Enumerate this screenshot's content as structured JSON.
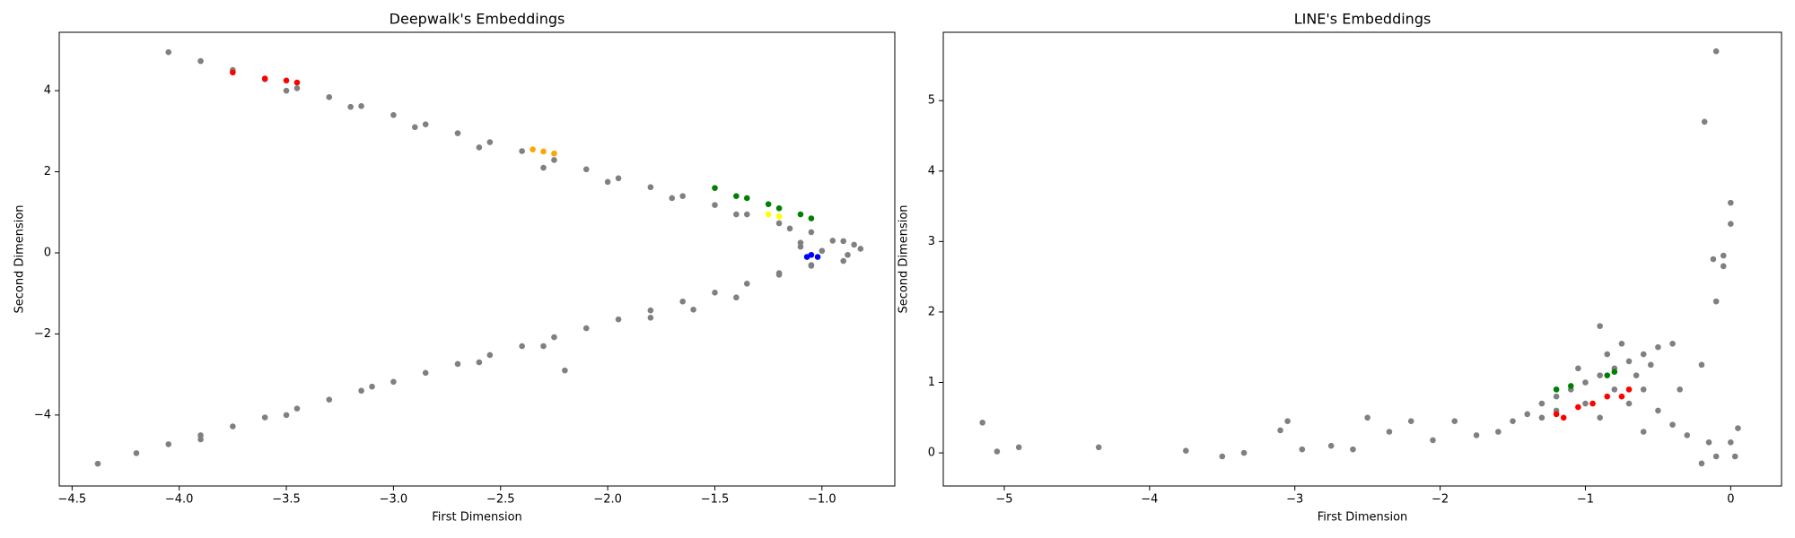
{
  "chart_data": [
    {
      "type": "scatter",
      "title": "Deepwalk's Embeddings",
      "xlabel": "First Dimension",
      "ylabel": "Second Dimension",
      "xlim": [
        -4.56,
        -0.66
      ],
      "ylim": [
        -5.75,
        5.44
      ],
      "xticks": [
        {
          "value": -4.5,
          "label": "−4.5"
        },
        {
          "value": -4.0,
          "label": "−4.0"
        },
        {
          "value": -3.5,
          "label": "−3.5"
        },
        {
          "value": -3.0,
          "label": "−3.0"
        },
        {
          "value": -2.5,
          "label": "−2.5"
        },
        {
          "value": -2.0,
          "label": "−2.0"
        },
        {
          "value": -1.5,
          "label": "−1.5"
        },
        {
          "value": -1.0,
          "label": "−1.0"
        }
      ],
      "yticks": [
        {
          "value": -4,
          "label": "−4"
        },
        {
          "value": -2,
          "label": "−2"
        },
        0,
        2,
        4
      ],
      "series": [
        {
          "color": "#808080",
          "x": [
            -4.05,
            -3.9,
            -3.75,
            -3.6,
            -3.45,
            -3.3,
            -3.15,
            -3.0,
            -2.85,
            -2.7,
            -2.55,
            -2.4,
            -2.25,
            -2.1,
            -1.95,
            -1.8,
            -1.65,
            -1.5,
            -1.35,
            -1.2,
            -1.05,
            -0.9,
            -3.5,
            -3.2,
            -2.9,
            -2.6,
            -2.3,
            -2.0,
            -1.7,
            -1.4,
            -1.15,
            -0.85,
            -0.82,
            -0.88,
            -0.95,
            -1.1,
            -1.0,
            -0.9,
            -1.05,
            -1.2,
            -1.1,
            -4.38,
            -4.2,
            -4.05,
            -3.9,
            -3.75,
            -3.6,
            -3.45,
            -3.3,
            -3.15,
            -3.0,
            -2.85,
            -2.7,
            -2.55,
            -2.4,
            -2.25,
            -2.1,
            -1.95,
            -1.8,
            -1.65,
            -1.5,
            -1.35,
            -1.2,
            -1.05,
            -3.9,
            -3.5,
            -3.1,
            -2.6,
            -2.3,
            -1.8,
            -1.4,
            -2.2,
            -1.6
          ],
          "y": [
            4.95,
            4.73,
            4.51,
            4.28,
            4.06,
            3.84,
            3.62,
            3.4,
            3.17,
            2.95,
            2.73,
            2.51,
            2.29,
            2.06,
            1.84,
            1.62,
            1.4,
            1.18,
            0.95,
            0.73,
            0.51,
            0.29,
            4.0,
            3.6,
            3.1,
            2.6,
            2.1,
            1.75,
            1.35,
            0.95,
            0.6,
            0.2,
            0.1,
            -0.05,
            0.3,
            0.25,
            0.05,
            -0.2,
            -0.3,
            -0.5,
            0.15,
            -5.2,
            -4.94,
            -4.72,
            -4.5,
            -4.28,
            -4.06,
            -3.84,
            -3.62,
            -3.4,
            -3.18,
            -2.96,
            -2.74,
            -2.52,
            -2.3,
            -2.08,
            -1.86,
            -1.64,
            -1.42,
            -1.2,
            -0.98,
            -0.76,
            -0.54,
            -0.32,
            -4.6,
            -4.0,
            -3.3,
            -2.7,
            -2.3,
            -1.6,
            -1.1,
            -2.9,
            -1.4
          ]
        },
        {
          "color": "red",
          "x": [
            -3.75,
            -3.6,
            -3.5,
            -3.45
          ],
          "y": [
            4.45,
            4.3,
            4.25,
            4.2
          ]
        },
        {
          "color": "orange",
          "x": [
            -2.35,
            -2.3,
            -2.25
          ],
          "y": [
            2.55,
            2.5,
            2.45
          ]
        },
        {
          "color": "green",
          "x": [
            -1.5,
            -1.4,
            -1.35,
            -1.25,
            -1.2,
            -1.1,
            -1.05
          ],
          "y": [
            1.6,
            1.4,
            1.35,
            1.2,
            1.1,
            0.95,
            0.85
          ]
        },
        {
          "color": "yellow",
          "x": [
            -1.25,
            -1.2
          ],
          "y": [
            0.95,
            0.9
          ]
        },
        {
          "color": "blue",
          "x": [
            -1.05,
            -1.02,
            -1.07
          ],
          "y": [
            -0.05,
            -0.1,
            -0.1
          ]
        }
      ]
    },
    {
      "type": "scatter",
      "title": "LINE's Embeddings",
      "xlabel": "First Dimension",
      "ylabel": "Second Dimension",
      "xlim": [
        -5.42,
        0.35
      ],
      "ylim": [
        -0.47,
        5.97
      ],
      "xticks": [
        {
          "value": -5,
          "label": "−5"
        },
        {
          "value": -4,
          "label": "−4"
        },
        {
          "value": -3,
          "label": "−3"
        },
        {
          "value": -2,
          "label": "−2"
        },
        {
          "value": -1,
          "label": "−1"
        },
        0
      ],
      "yticks": [
        0,
        1,
        2,
        3,
        4,
        5
      ],
      "series": [
        {
          "color": "#808080",
          "x": [
            -1.6,
            -1.5,
            -1.4,
            -1.3,
            -1.2,
            -1.1,
            -1.0,
            -0.9,
            -0.8,
            -0.7,
            -0.6,
            -0.5,
            -1.2,
            -1.0,
            -0.9,
            -0.8,
            -0.7,
            -0.6,
            -0.5,
            -1.05,
            -0.85,
            -0.65,
            -0.4,
            -0.35,
            -0.4,
            -0.6,
            -0.9,
            -1.3,
            -0.75,
            -0.55,
            -5.15,
            -5.05,
            -4.9,
            -4.35,
            -3.75,
            -3.5,
            -3.35,
            -3.1,
            -3.05,
            -2.95,
            -2.75,
            -2.6,
            -2.5,
            -2.35,
            -2.2,
            -2.05,
            -1.9,
            -1.75,
            -0.1,
            -0.18,
            0.0,
            0.0,
            -0.05,
            -0.12,
            -0.05,
            -0.1,
            -0.2,
            -0.15,
            -0.1,
            -0.2,
            0.05,
            0.0,
            0.03,
            -0.3
          ],
          "y": [
            0.3,
            0.45,
            0.55,
            0.7,
            0.8,
            0.9,
            1.0,
            1.1,
            1.2,
            1.3,
            1.4,
            1.5,
            0.6,
            0.7,
            0.5,
            0.9,
            0.7,
            0.9,
            0.6,
            1.2,
            1.4,
            1.1,
            1.55,
            0.9,
            0.4,
            0.3,
            1.8,
            0.5,
            1.55,
            1.25,
            0.43,
            0.02,
            0.08,
            0.08,
            0.03,
            -0.05,
            0.0,
            0.32,
            0.45,
            0.05,
            0.1,
            0.05,
            0.5,
            0.3,
            0.45,
            0.18,
            0.45,
            0.25,
            5.7,
            4.7,
            3.55,
            3.25,
            2.8,
            2.75,
            2.65,
            2.15,
            1.25,
            0.15,
            -0.05,
            -0.15,
            0.35,
            0.15,
            -0.05,
            0.25
          ]
        },
        {
          "color": "red",
          "x": [
            -1.2,
            -1.15,
            -1.05,
            -0.95,
            -0.85,
            -0.75,
            -0.7
          ],
          "y": [
            0.55,
            0.5,
            0.65,
            0.7,
            0.8,
            0.8,
            0.9
          ]
        },
        {
          "color": "green",
          "x": [
            -1.2,
            -1.1,
            -0.85,
            -0.8
          ],
          "y": [
            0.9,
            0.95,
            1.1,
            1.15
          ]
        }
      ]
    }
  ]
}
